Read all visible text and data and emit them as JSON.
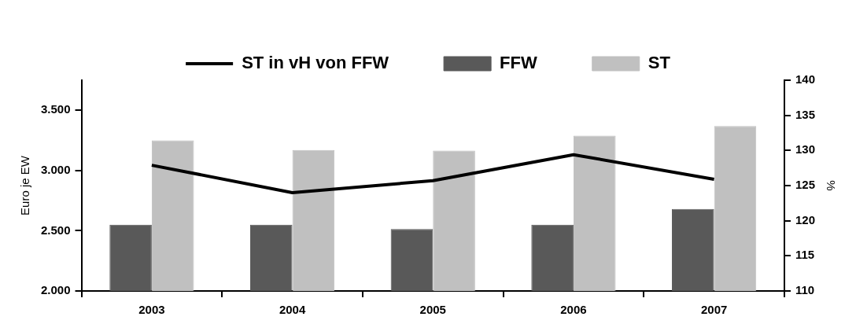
{
  "chart_data": {
    "type": "bar",
    "categories": [
      "2003",
      "2004",
      "2005",
      "2006",
      "2007"
    ],
    "series": [
      {
        "name": "FFW",
        "color": "#595959",
        "values": [
          2550,
          2550,
          2515,
          2550,
          2680
        ]
      },
      {
        "name": "ST",
        "color": "#c0c0c0",
        "values": [
          3250,
          3170,
          3165,
          3290,
          3370
        ]
      },
      {
        "name": "ST in vH von FFW",
        "type": "line",
        "axis": "y2",
        "color": "#000000",
        "values": [
          127.9,
          124.0,
          125.7,
          129.4,
          125.9
        ]
      }
    ],
    "ylabel": "Euro je EW",
    "y2label": "%",
    "ylim": [
      2000,
      3750
    ],
    "yticks": [
      {
        "value": 2000,
        "label": "2.000"
      },
      {
        "value": 2500,
        "label": "2.500"
      },
      {
        "value": 3000,
        "label": "3.000"
      },
      {
        "value": 3500,
        "label": "3.500"
      }
    ],
    "y2lim": [
      110,
      140
    ],
    "y2ticks": [
      110,
      115,
      120,
      125,
      130,
      135,
      140
    ],
    "grid": false,
    "legend": "top",
    "marker": "none",
    "line_style": "solid"
  }
}
